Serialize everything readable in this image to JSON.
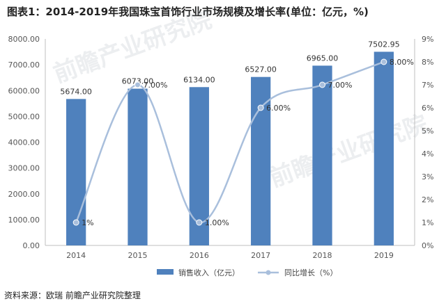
{
  "title": "图表1：2014-2019年我国珠宝首饰行业市场规模及增长率(单位：亿元，%)",
  "source": "资料来源：欧瑞 前瞻产业研究院整理",
  "watermark": "前瞻产业研究院",
  "colors": {
    "bar": "#4f81bd",
    "line": "#a9bfdc",
    "axis": "#bfbfbf"
  },
  "chart_data": {
    "type": "bar",
    "categories": [
      "2014",
      "2015",
      "2016",
      "2017",
      "2018",
      "2019"
    ],
    "series": [
      {
        "name": "销售收入（亿元）",
        "type": "bar",
        "axis": "left",
        "values": [
          5674.0,
          6073.0,
          6134.0,
          6527.0,
          6965.0,
          7502.95
        ],
        "labels": [
          "5674.00",
          "6073.00",
          "6134.00",
          "6527.00",
          "6965.00",
          "7502.95"
        ]
      },
      {
        "name": "同比增长（%）",
        "type": "line",
        "smooth": true,
        "axis": "right",
        "values": [
          1,
          7,
          1,
          6,
          7,
          8
        ],
        "labels": [
          "1%",
          "7.00%",
          "1.00%",
          "6.00%",
          "7.00%",
          "8.00%"
        ]
      }
    ],
    "y_left": {
      "min": 0,
      "max": 8000,
      "step": 1000,
      "ticks": [
        "0.00",
        "1000.00",
        "2000.00",
        "3000.00",
        "4000.00",
        "5000.00",
        "6000.00",
        "7000.00",
        "8000.00"
      ]
    },
    "y_right": {
      "min": 0,
      "max": 9,
      "step": 1,
      "ticks": [
        "0%",
        "1%",
        "2%",
        "3%",
        "4%",
        "5%",
        "6%",
        "7%",
        "8%",
        "9%"
      ]
    },
    "legend_position": "bottom",
    "grid": false
  }
}
